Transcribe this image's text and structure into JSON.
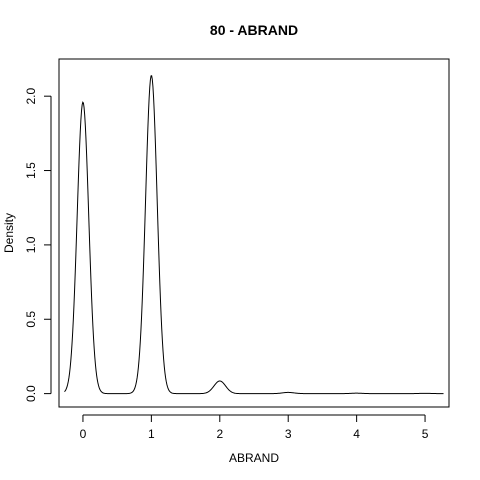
{
  "chart_data": {
    "type": "line",
    "title": "80 - ABRAND",
    "xlabel": "ABRAND",
    "ylabel": "Density",
    "xlim": [
      -0.35,
      5.35
    ],
    "ylim": [
      -0.09,
      2.25
    ],
    "x_ticks": [
      0,
      1,
      2,
      3,
      4,
      5
    ],
    "x_tick_labels": [
      "0",
      "1",
      "2",
      "3",
      "4",
      "5"
    ],
    "y_ticks": [
      0.0,
      0.5,
      1.0,
      1.5,
      2.0
    ],
    "y_tick_labels": [
      "0.0",
      "0.5",
      "1.0",
      "1.5",
      "2.0"
    ],
    "x_range": [
      -0.27,
      5.27
    ],
    "grid": false,
    "legend": "none",
    "series": [
      {
        "peaks": [
          {
            "x": 0,
            "y": 1.96
          },
          {
            "x": 1,
            "y": 2.14
          },
          {
            "x": 2,
            "y": 0.085
          },
          {
            "x": 3,
            "y": 0.008
          },
          {
            "x": 4,
            "y": 0.003
          },
          {
            "x": 5,
            "y": 0.002
          }
        ],
        "bandwidth": 0.085,
        "color": "#000000"
      }
    ]
  }
}
